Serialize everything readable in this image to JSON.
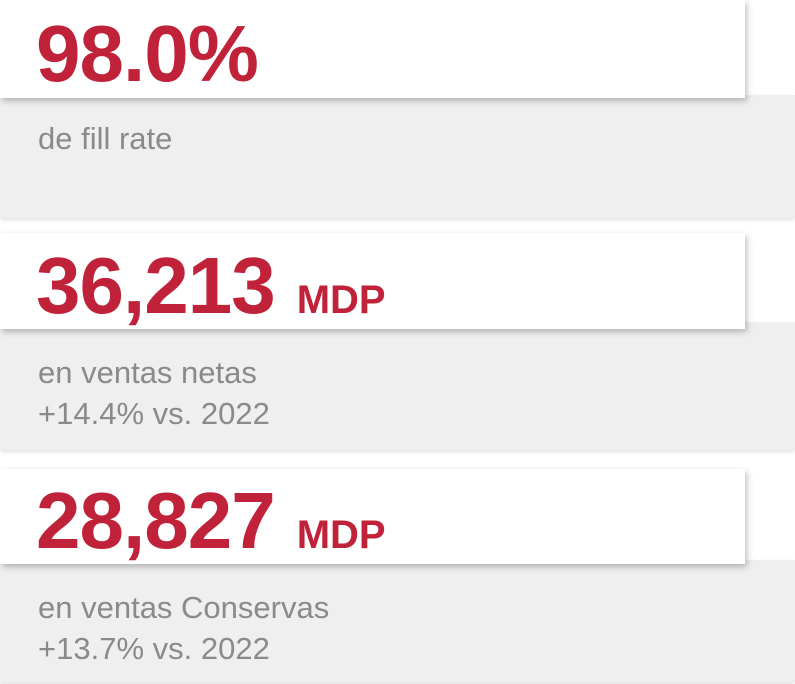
{
  "cards": [
    {
      "value": "98.0%",
      "description": [
        "de fill rate"
      ]
    },
    {
      "value": "36,213",
      "unit": "MDP",
      "description": [
        "en ventas netas",
        "+14.4% vs. 2022"
      ]
    },
    {
      "value": "28,827",
      "unit": "MDP",
      "description": [
        "en ventas Conservas",
        "+13.7% vs. 2022"
      ]
    }
  ]
}
